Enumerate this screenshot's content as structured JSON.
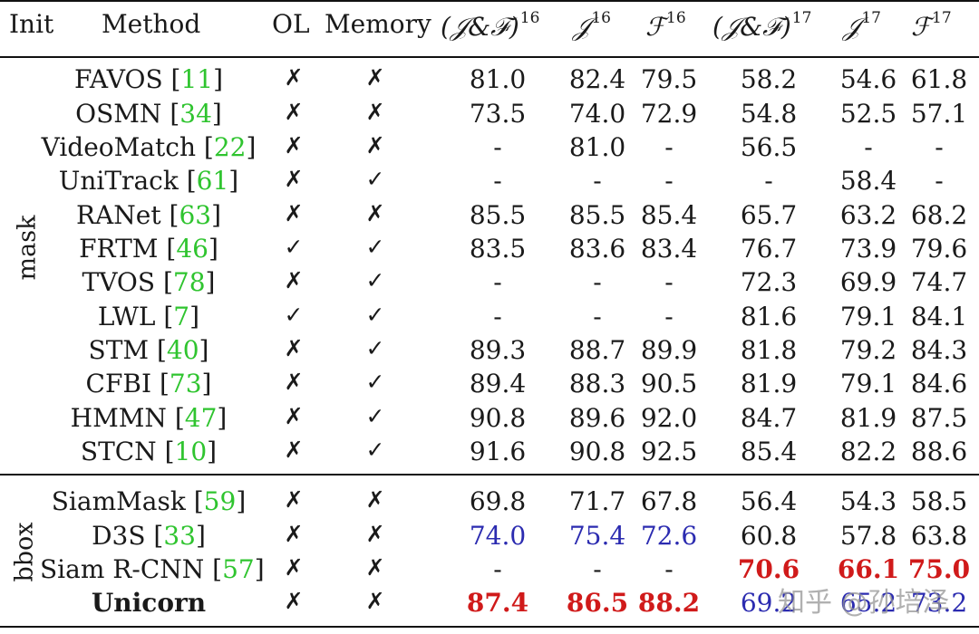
{
  "header": {
    "init": "Init",
    "method": "Method",
    "ol": "OL",
    "memory": "Memory",
    "jf16": "(𝒥&ℱ)",
    "jf16_sup": "16",
    "j16": "𝒥",
    "j16_sup": "16",
    "f16": "ℱ",
    "f16_sup": "16",
    "jf17": "(𝒥&ℱ)",
    "jf17_sup": "17",
    "j17": "𝒥",
    "j17_sup": "17",
    "f17": "ℱ",
    "f17_sup": "17"
  },
  "groups": {
    "mask": "mask",
    "bbox": "bbox"
  },
  "rows": [
    {
      "name": "FAVOS ",
      "ref": "11",
      "ol": "✗",
      "mem": "✗",
      "v": [
        "81.0",
        "82.4",
        "79.5",
        "58.2",
        "54.6",
        "61.8"
      ]
    },
    {
      "name": "OSMN ",
      "ref": "34",
      "ol": "✗",
      "mem": "✗",
      "v": [
        "73.5",
        "74.0",
        "72.9",
        "54.8",
        "52.5",
        "57.1"
      ]
    },
    {
      "name": "VideoMatch ",
      "ref": "22",
      "ol": "✗",
      "mem": "✗",
      "v": [
        "-",
        "81.0",
        "-",
        "56.5",
        "-",
        "-"
      ]
    },
    {
      "name": "UniTrack ",
      "ref": "61",
      "ol": "✗",
      "mem": "✓",
      "v": [
        "-",
        "-",
        "-",
        "-",
        "58.4",
        "-"
      ]
    },
    {
      "name": "RANet ",
      "ref": "63",
      "ol": "✗",
      "mem": "✗",
      "v": [
        "85.5",
        "85.5",
        "85.4",
        "65.7",
        "63.2",
        "68.2"
      ]
    },
    {
      "name": "FRTM ",
      "ref": "46",
      "ol": "✓",
      "mem": "✓",
      "v": [
        "83.5",
        "83.6",
        "83.4",
        "76.7",
        "73.9",
        "79.6"
      ]
    },
    {
      "name": "TVOS ",
      "ref": "78",
      "ol": "✗",
      "mem": "✓",
      "v": [
        "-",
        "-",
        "-",
        "72.3",
        "69.9",
        "74.7"
      ]
    },
    {
      "name": "LWL ",
      "ref": "7",
      "ol": "✓",
      "mem": "✓",
      "v": [
        "-",
        "-",
        "-",
        "81.6",
        "79.1",
        "84.1"
      ]
    },
    {
      "name": "STM ",
      "ref": "40",
      "ol": "✗",
      "mem": "✓",
      "v": [
        "89.3",
        "88.7",
        "89.9",
        "81.8",
        "79.2",
        "84.3"
      ]
    },
    {
      "name": "CFBI ",
      "ref": "73",
      "ol": "✗",
      "mem": "✓",
      "v": [
        "89.4",
        "88.3",
        "90.5",
        "81.9",
        "79.1",
        "84.6"
      ]
    },
    {
      "name": "HMMN ",
      "ref": "47",
      "ol": "✗",
      "mem": "✓",
      "v": [
        "90.8",
        "89.6",
        "92.0",
        "84.7",
        "81.9",
        "87.5"
      ]
    },
    {
      "name": "STCN ",
      "ref": "10",
      "ol": "✗",
      "mem": "✓",
      "v": [
        "91.6",
        "90.8",
        "92.5",
        "85.4",
        "82.2",
        "88.6"
      ]
    },
    {
      "name": "SiamMask ",
      "ref": "59",
      "ol": "✗",
      "mem": "✗",
      "v": [
        "69.8",
        "71.7",
        "67.8",
        "56.4",
        "54.3",
        "58.5"
      ]
    },
    {
      "name": "D3S ",
      "ref": "33",
      "ol": "✗",
      "mem": "✗",
      "v": [
        "74.0",
        "75.4",
        "72.6",
        "60.8",
        "57.8",
        "63.8"
      ]
    },
    {
      "name": "Siam R-CNN ",
      "ref": "57",
      "ol": "✗",
      "mem": "✗",
      "v": [
        "-",
        "-",
        "-",
        "70.6",
        "66.1",
        "75.0"
      ]
    },
    {
      "name": "Unicorn",
      "ref": "",
      "ol": "✗",
      "mem": "✗",
      "v": [
        "87.4",
        "86.5",
        "88.2",
        "69.2",
        "65.2",
        "73.2"
      ]
    }
  ],
  "colors": {
    "ref": "#2fc42f",
    "blue": "#2b2bb0",
    "red": "#d01a1a"
  },
  "watermark": "知乎 @孙培泽"
}
